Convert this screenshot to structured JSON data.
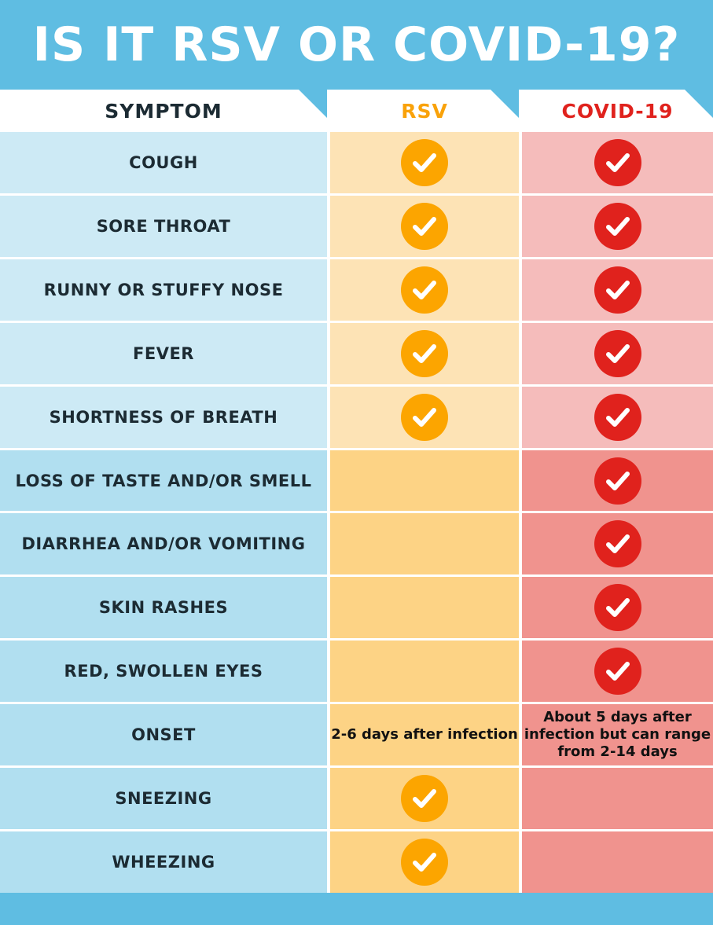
{
  "title": "IS IT RSV OR COVID-19?",
  "headers": {
    "symptom": "SYMPTOM",
    "rsv": "RSV",
    "covid": "COVID-19"
  },
  "colors": {
    "blue": "#5fbde2",
    "rsv": "#fca500",
    "covid": "#e0221d"
  },
  "rows": [
    {
      "symptom": "COUGH",
      "rsv": true,
      "covid": true
    },
    {
      "symptom": "SORE THROAT",
      "rsv": true,
      "covid": true
    },
    {
      "symptom": "RUNNY OR STUFFY NOSE",
      "rsv": true,
      "covid": true
    },
    {
      "symptom": "FEVER",
      "rsv": true,
      "covid": true
    },
    {
      "symptom": "SHORTNESS OF BREATH",
      "rsv": true,
      "covid": true
    },
    {
      "symptom": "LOSS OF TASTE AND/OR SMELL",
      "rsv": false,
      "covid": true
    },
    {
      "symptom": "DIARRHEA AND/OR VOMITING",
      "rsv": false,
      "covid": true
    },
    {
      "symptom": "SKIN RASHES",
      "rsv": false,
      "covid": true
    },
    {
      "symptom": "RED, SWOLLEN EYES",
      "rsv": false,
      "covid": true
    },
    {
      "symptom": "ONSET",
      "rsv_text": "2-6 days after infection",
      "covid_text": "About 5 days after infection but can range from 2-14 days"
    },
    {
      "symptom": "SNEEZING",
      "rsv": true,
      "covid": false
    },
    {
      "symptom": "WHEEZING",
      "rsv": true,
      "covid": false
    }
  ]
}
